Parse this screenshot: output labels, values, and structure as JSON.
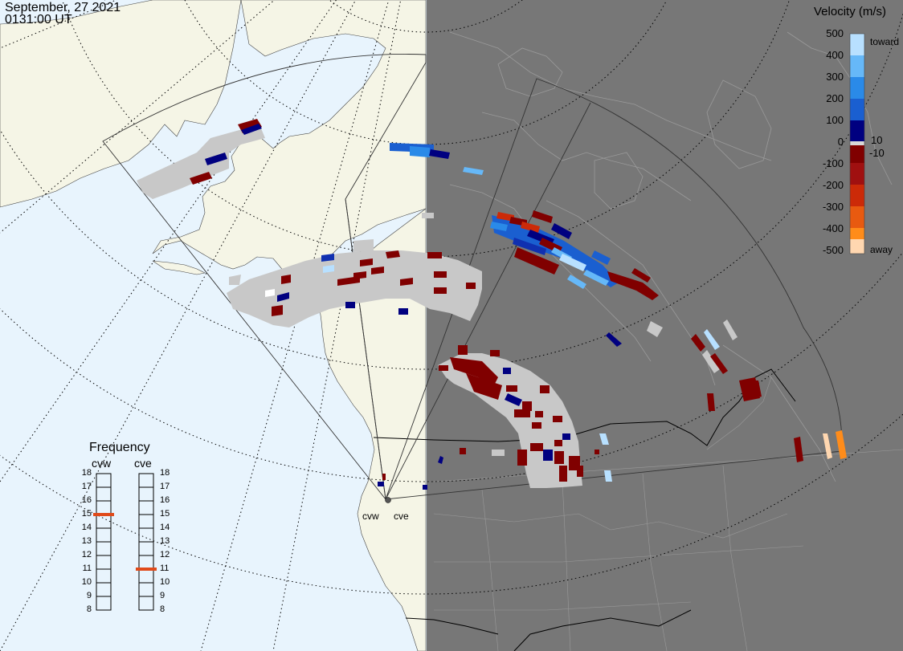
{
  "header": {
    "date": "September, 27 2021",
    "time": "0131:00 UT"
  },
  "velocity_scale": {
    "title": "Velocity (m/s)",
    "ticks": [
      "500",
      "400",
      "300",
      "200",
      "100",
      "0",
      "-100",
      "-200",
      "-300",
      "-400",
      "-500"
    ],
    "inner_labels": [
      "10",
      "-10"
    ],
    "toward_label": "toward",
    "away_label": "away",
    "colors": [
      "#ffd7b0",
      "#ffb060",
      "#ff8c1a",
      "#e85a10",
      "#cc2a08",
      "#a01010",
      "#800000",
      "#d8d8d8",
      "#000080",
      "#1030b0",
      "#1a5fd0",
      "#2a8ae8",
      "#66b8f8",
      "#b8e0ff"
    ]
  },
  "frequency": {
    "title": "Frequency",
    "radars": [
      {
        "name": "cvw",
        "value": 15
      },
      {
        "name": "cve",
        "value": 11
      }
    ],
    "ticks": [
      "18",
      "17",
      "16",
      "15",
      "14",
      "13",
      "12",
      "11",
      "10",
      "9",
      "8"
    ],
    "marker_color": "#e04a1a"
  },
  "radars": [
    {
      "label": "cvw"
    },
    {
      "label": "cve"
    }
  ],
  "map_colors": {
    "ocean_day": "#e8f4fd",
    "land_day": "#f5f5e6",
    "night": "#777777",
    "night_lines": "#9a9a9a",
    "ground_scatter": "#c8c8c8"
  }
}
